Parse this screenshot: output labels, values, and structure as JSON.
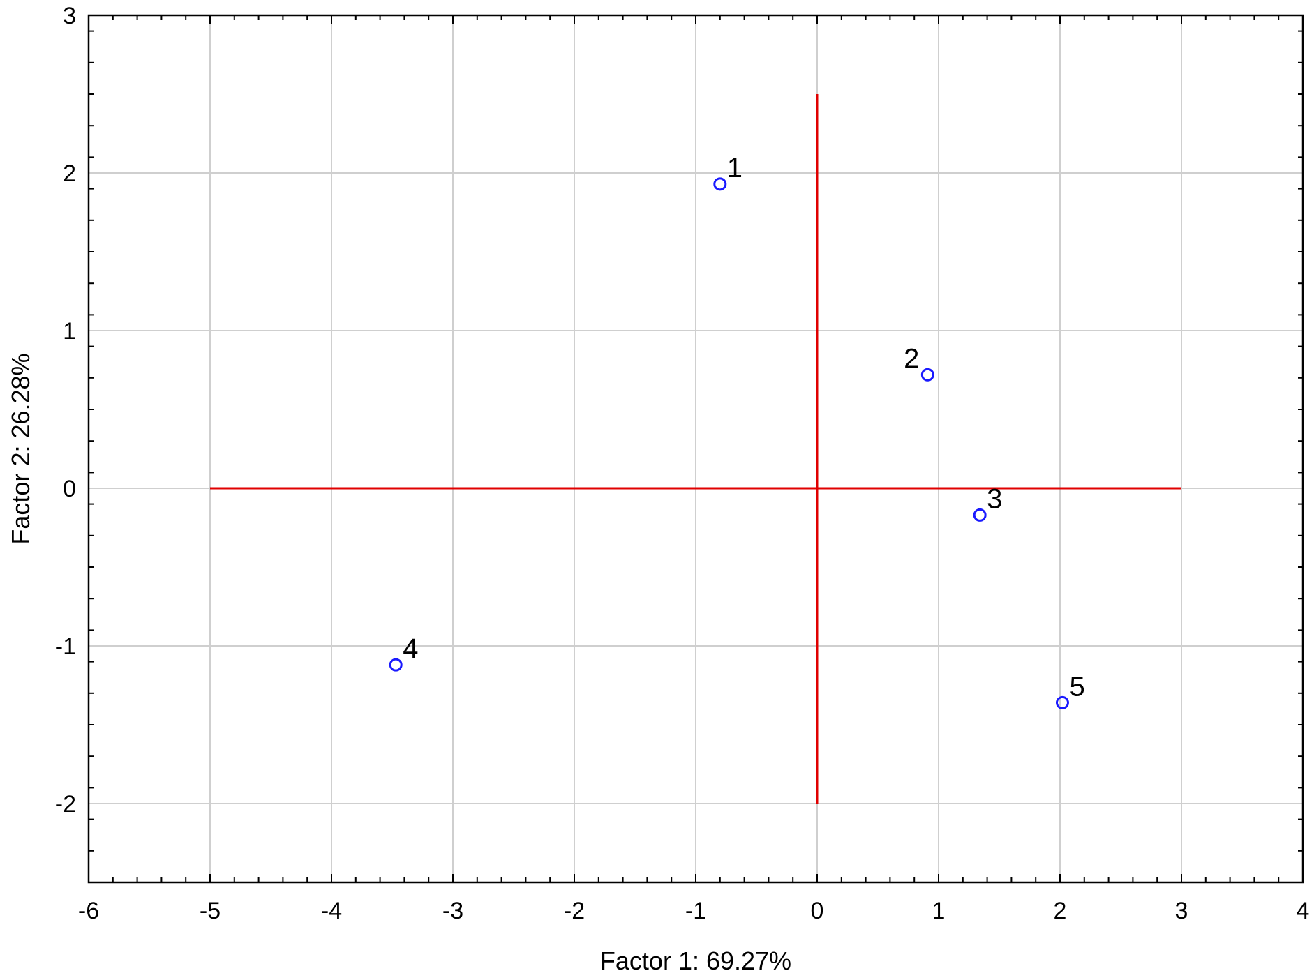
{
  "chart_data": {
    "type": "scatter",
    "title": "",
    "xlabel": "Factor 1: 69.27%",
    "ylabel": "Factor 2: 26.28%",
    "xlim": [
      -6,
      4
    ],
    "ylim": [
      -2.5,
      3
    ],
    "x_ticks": [
      -6,
      -5,
      -4,
      -3,
      -2,
      -1,
      0,
      1,
      2,
      3,
      4
    ],
    "y_ticks": [
      -2,
      -1,
      0,
      1,
      2,
      3
    ],
    "x_tick_labels": [
      "-6",
      "-5",
      "-4",
      "-3",
      "-2",
      "-1",
      "0",
      "1",
      "2",
      "3",
      "4"
    ],
    "y_tick_labels": [
      "-2",
      "-1",
      "0",
      "1",
      "2",
      "3"
    ],
    "grid": true,
    "reference_lines": {
      "color": "#e00000",
      "horizontal": {
        "y": 0,
        "x_from": -5,
        "x_to": 3
      },
      "vertical": {
        "x": 0,
        "y_from": -2,
        "y_to": 2.5
      }
    },
    "marker_color": "#1a1aff",
    "points": [
      {
        "label": "1",
        "x": -0.8,
        "y": 1.93,
        "label_pos": "upper-right"
      },
      {
        "label": "2",
        "x": 0.91,
        "y": 0.72,
        "label_pos": "upper-left"
      },
      {
        "label": "3",
        "x": 1.34,
        "y": -0.17,
        "label_pos": "upper-right"
      },
      {
        "label": "4",
        "x": -3.47,
        "y": -1.12,
        "label_pos": "upper-right"
      },
      {
        "label": "5",
        "x": 2.02,
        "y": -1.36,
        "label_pos": "upper-right"
      }
    ]
  }
}
